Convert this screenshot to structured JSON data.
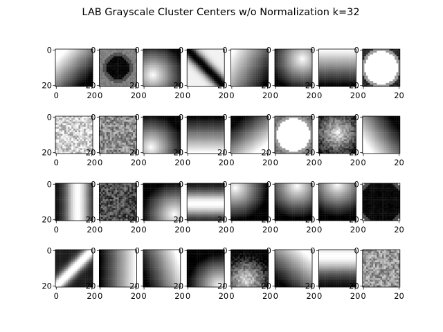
{
  "figure": {
    "title": "LAB Grayscale Cluster Centers w/o Normalization k=32"
  },
  "chart_data": {
    "type": "heatmap",
    "title": "LAB Grayscale Cluster Centers w/o Normalization k=32",
    "grid": false,
    "colormap": "gray",
    "subplot_layout": {
      "rows": 4,
      "cols": 8
    },
    "x_ticks": [
      "0",
      "20"
    ],
    "y_ticks": [
      "0",
      "20"
    ],
    "xlim": [
      0,
      20
    ],
    "ylim": [
      20,
      0
    ],
    "panels": [
      {
        "pattern": "gradient",
        "dx": 0.7,
        "dy": 0.7,
        "offset": 0.0,
        "desc": "light top-left to dark bottom-right"
      },
      {
        "pattern": "dark-blob",
        "inner": 0.0,
        "outer": 0.32,
        "bg": 0.5
      },
      {
        "pattern": "radial",
        "cx": 0.25,
        "cy": 0.7,
        "inverted": false
      },
      {
        "pattern": "diagonal-band",
        "angle": -45,
        "dark": true
      },
      {
        "pattern": "gradient",
        "dx": 0.7,
        "dy": 0.4,
        "offset": 0.0
      },
      {
        "pattern": "radial",
        "cx": 0.75,
        "cy": 0.25,
        "inverted": false
      },
      {
        "pattern": "gradient",
        "dx": 0.0,
        "dy": 1.0,
        "offset": 0.0,
        "desc": "dark top to light bottom"
      },
      {
        "pattern": "white-blob",
        "inner": 1.0,
        "outer": 0.55,
        "bg": 0.15
      },
      {
        "pattern": "noise",
        "base": 0.8
      },
      {
        "pattern": "noise",
        "base": 0.55
      },
      {
        "pattern": "radial",
        "cx": 0.2,
        "cy": 0.85,
        "inverted": false
      },
      {
        "pattern": "gradient",
        "dx": 0.0,
        "dy": -1.0,
        "offset": 0.0
      },
      {
        "pattern": "gradient",
        "dx": -0.6,
        "dy": -0.8,
        "offset": 0.0
      },
      {
        "pattern": "white-blob",
        "inner": 1.0,
        "outer": 0.55,
        "bg": 0.45
      },
      {
        "pattern": "radial-noise",
        "cx": 0.5,
        "cy": 0.45
      },
      {
        "pattern": "gradient",
        "dx": 0.8,
        "dy": -0.6,
        "offset": 0.0
      },
      {
        "pattern": "vertical-band",
        "center": 0.6,
        "width": 0.35
      },
      {
        "pattern": "noise",
        "base": 0.3
      },
      {
        "pattern": "radial",
        "cx": 0.85,
        "cy": 0.85,
        "inverted": false
      },
      {
        "pattern": "horizontal-band",
        "center": 0.55,
        "width": 0.35
      },
      {
        "pattern": "radial",
        "cx": 0.1,
        "cy": 0.1,
        "inverted": false
      },
      {
        "pattern": "radial",
        "cx": 0.6,
        "cy": 0.05,
        "inverted": false
      },
      {
        "pattern": "radial",
        "cx": 0.5,
        "cy": 0.0,
        "inverted": false
      },
      {
        "pattern": "dark-blob",
        "inner": 0.0,
        "outer": 0.6,
        "bg": 1.0
      },
      {
        "pattern": "diagonal-band",
        "angle": 45,
        "dark": false
      },
      {
        "pattern": "gradient",
        "dx": -1.0,
        "dy": 0.0,
        "offset": 0.0
      },
      {
        "pattern": "gradient",
        "dx": -0.9,
        "dy": 0.3,
        "offset": 0.0
      },
      {
        "pattern": "radial",
        "cx": 0.9,
        "cy": 1.0,
        "inverted": false
      },
      {
        "pattern": "radial-noise",
        "cx": 0.4,
        "cy": 0.85
      },
      {
        "pattern": "gradient",
        "dx": -0.6,
        "dy": 0.7,
        "offset": 0.0
      },
      {
        "pattern": "horizontal-band",
        "center": 0.15,
        "width": 0.5
      },
      {
        "pattern": "noise",
        "base": 0.6
      }
    ]
  }
}
